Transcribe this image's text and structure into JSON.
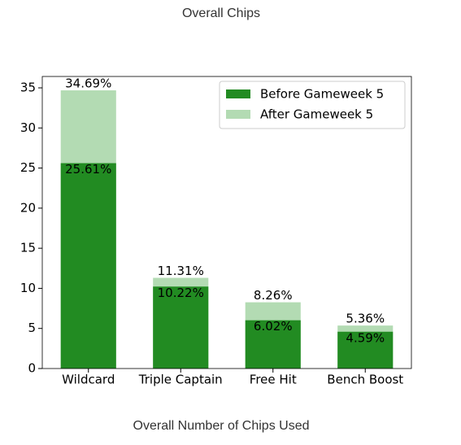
{
  "chart_data": {
    "type": "bar",
    "title": "Overall Chips",
    "caption": "Overall Number of Chips Used",
    "categories": [
      "Wildcard",
      "Triple Captain",
      "Free Hit",
      "Bench Boost"
    ],
    "series": [
      {
        "name": "Before Gameweek 5",
        "color": "#228b22",
        "values": [
          25.61,
          10.22,
          6.02,
          4.59
        ],
        "value_labels": [
          "25.61%",
          "10.22%",
          "6.02%",
          "4.59%"
        ]
      },
      {
        "name": "After Gameweek 5",
        "color": "#b3dbb3",
        "values": [
          34.69,
          11.31,
          8.26,
          5.36
        ],
        "value_labels": [
          "34.69%",
          "11.31%",
          "8.26%",
          "5.36%"
        ]
      }
    ],
    "overlap": true,
    "ylim": [
      0,
      36.42
    ],
    "yticks": [
      0,
      5,
      10,
      15,
      20,
      25,
      30,
      35
    ],
    "legend": "upper right"
  }
}
